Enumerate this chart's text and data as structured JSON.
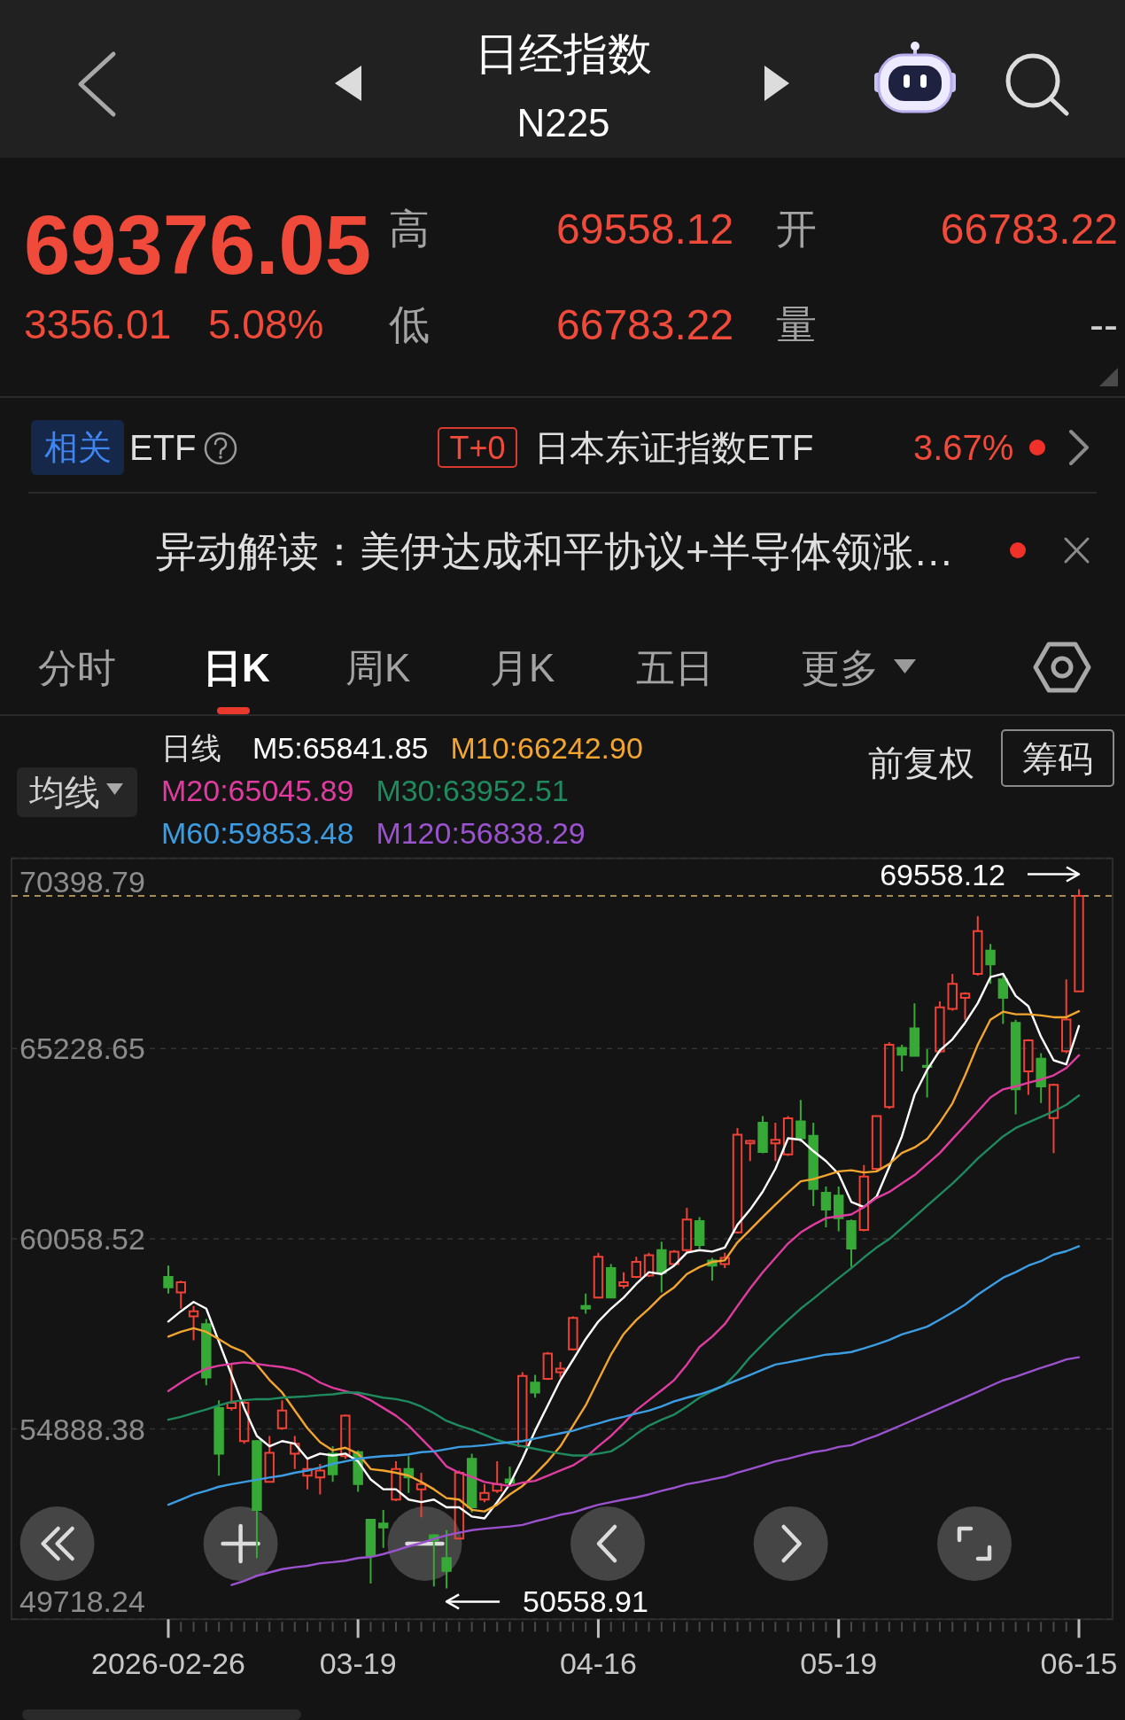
{
  "chart_data": [
    {
      "type": "other",
      "title": "日经指数",
      "subtitle": "N225",
      "annotations": [
        "69376.05",
        "3356.01",
        "5.08%",
        "高",
        "69558.12",
        "开",
        "66783.22",
        "低",
        "66783.22",
        "量",
        "--",
        "相关",
        "ETF",
        "T+0",
        "日本东证指数ETF",
        "3.67%",
        "异动解读：美伊达成和平协议+半导体领涨…",
        "分时",
        "日K",
        "周K",
        "月K",
        "五日",
        "更多"
      ]
    },
    {
      "type": "candlestick",
      "legend_title": "日线",
      "legend": "top left",
      "grid": "y",
      "annotations": [
        "均线",
        "前复权",
        "筹码",
        "69558.12",
        "50558.91"
      ],
      "categories": [
        "2026-02-26",
        null,
        null,
        null,
        null,
        null,
        null,
        null,
        null,
        null,
        null,
        null,
        null,
        null,
        null,
        "03-19",
        null,
        null,
        null,
        null,
        null,
        null,
        null,
        null,
        null,
        null,
        null,
        null,
        null,
        null,
        null,
        null,
        null,
        null,
        "04-16",
        null,
        null,
        null,
        null,
        null,
        null,
        null,
        null,
        null,
        null,
        null,
        null,
        null,
        null,
        null,
        null,
        null,
        null,
        "05-19",
        null,
        null,
        null,
        null,
        null,
        null,
        null,
        null,
        null,
        null,
        null,
        null,
        null,
        null,
        null,
        null,
        null,
        null,
        "06-15"
      ],
      "ylim": [
        49718.24,
        70398.79
      ],
      "yticks": [
        49718.24,
        54888.38,
        60058.52,
        65228.65,
        70398.79
      ],
      "ref_lines": [
        {
          "axis": "y",
          "value": 69376.05,
          "color": "#d9b56f",
          "line_style": "dashed"
        }
      ],
      "ohlc": [
        [
          59020,
          59330,
          58570,
          58740
        ],
        [
          58600,
          58920,
          58160,
          58880
        ],
        [
          57950,
          58230,
          57300,
          58090
        ],
        [
          57740,
          57880,
          56080,
          56290
        ],
        [
          55460,
          55670,
          53620,
          54220
        ],
        [
          55460,
          56640,
          55390,
          55600
        ],
        [
          54560,
          55670,
          54490,
          55600
        ],
        [
          54560,
          54590,
          51380,
          52690
        ],
        [
          53450,
          54700,
          53450,
          54240
        ],
        [
          54910,
          55670,
          54870,
          55390
        ],
        [
          54220,
          54700,
          53800,
          54490
        ],
        [
          53620,
          54080,
          53250,
          53800
        ],
        [
          53570,
          53940,
          53110,
          53760
        ],
        [
          54220,
          54420,
          53450,
          53660
        ],
        [
          54150,
          55280,
          54080,
          55250
        ],
        [
          54260,
          54310,
          53180,
          53390
        ],
        [
          52420,
          52420,
          50690,
          51450
        ],
        [
          52320,
          52690,
          51660,
          52210
        ],
        [
          52970,
          54010,
          52930,
          53800
        ],
        [
          53800,
          54150,
          53150,
          53570
        ],
        [
          53250,
          53700,
          52490,
          53390
        ],
        [
          52000,
          52030,
          50610,
          51860
        ],
        [
          51380,
          52140,
          50558.91,
          51030
        ],
        [
          51910,
          53760,
          51910,
          53700
        ],
        [
          54080,
          54220,
          52620,
          52760
        ],
        [
          52970,
          53390,
          52900,
          53150
        ],
        [
          53210,
          54010,
          53150,
          53390
        ],
        [
          53520,
          53870,
          53390,
          53430
        ],
        [
          54420,
          56430,
          54400,
          56330
        ],
        [
          56150,
          56360,
          55740,
          55880
        ],
        [
          56250,
          56980,
          56220,
          56940
        ],
        [
          56430,
          56710,
          56290,
          56530
        ],
        [
          57050,
          57950,
          57020,
          57910
        ],
        [
          58230,
          58570,
          58020,
          58160
        ],
        [
          58460,
          59680,
          58430,
          59570
        ],
        [
          59260,
          59370,
          58460,
          58460
        ],
        [
          58780,
          59150,
          58710,
          58880
        ],
        [
          59020,
          59570,
          58990,
          59430
        ],
        [
          59060,
          59680,
          59020,
          59610
        ],
        [
          59750,
          59980,
          58600,
          59130
        ],
        [
          59370,
          59750,
          59330,
          59710
        ],
        [
          59750,
          60900,
          59680,
          60580
        ],
        [
          60540,
          60650,
          59790,
          59890
        ],
        [
          59470,
          59540,
          58920,
          59330
        ],
        [
          59370,
          59680,
          59260,
          59540
        ],
        [
          60230,
          63070,
          60200,
          62890
        ],
        [
          62650,
          62750,
          62170,
          62720
        ],
        [
          63210,
          63390,
          62380,
          62420
        ],
        [
          62650,
          63210,
          62170,
          62750
        ],
        [
          62350,
          63390,
          62310,
          63330
        ],
        [
          63250,
          63830,
          62690,
          62790
        ],
        [
          62860,
          63210,
          60950,
          61410
        ],
        [
          61310,
          61480,
          60370,
          60850
        ],
        [
          61230,
          61480,
          60260,
          60620
        ],
        [
          60540,
          60580,
          59290,
          59790
        ],
        [
          60300,
          62060,
          60260,
          61750
        ],
        [
          61960,
          63410,
          61890,
          63390
        ],
        [
          63640,
          65400,
          63590,
          65330
        ],
        [
          65250,
          65330,
          64610,
          65060
        ],
        [
          65780,
          66460,
          65030,
          65030
        ],
        [
          64760,
          65210,
          63900,
          64730
        ],
        [
          65150,
          66510,
          65100,
          66350
        ],
        [
          66310,
          67260,
          66260,
          66990
        ],
        [
          66610,
          66760,
          66010,
          66720
        ],
        [
          67260,
          68830,
          67210,
          68420
        ],
        [
          67890,
          68070,
          66990,
          67520
        ],
        [
          67110,
          67210,
          65900,
          66610
        ],
        [
          65930,
          66010,
          63440,
          64120
        ],
        [
          64610,
          65480,
          63970,
          65450
        ],
        [
          64950,
          65100,
          63750,
          64200
        ],
        [
          63340,
          64270,
          62390,
          64240
        ],
        [
          65160,
          67110,
          65100,
          66020
        ],
        [
          66783.22,
          69558.12,
          66783.22,
          69376.05
        ]
      ],
      "colors": [
        "#36a936",
        "#ef4136",
        "#ef4136",
        "#36a936",
        "#36a936",
        "#ef4136",
        "#ef4136",
        "#36a936",
        "#ef4136",
        "#ef4136",
        "#ef4136",
        "#ef4136",
        "#ef4136",
        "#36a936",
        "#ef4136",
        "#36a936",
        "#36a936",
        "#36a936",
        "#ef4136",
        "#36a936",
        "#ef4136",
        "#36a936",
        "#36a936",
        "#ef4136",
        "#36a936",
        "#ef4136",
        "#ef4136",
        "#36a936",
        "#ef4136",
        "#36a936",
        "#ef4136",
        "#ef4136",
        "#ef4136",
        "#36a936",
        "#ef4136",
        "#36a936",
        "#ef4136",
        "#ef4136",
        "#ef4136",
        "#36a936",
        "#ef4136",
        "#ef4136",
        "#36a936",
        "#36a936",
        "#ef4136",
        "#ef4136",
        "#ef4136",
        "#36a936",
        "#ef4136",
        "#ef4136",
        "#36a936",
        "#36a936",
        "#36a936",
        "#36a936",
        "#36a936",
        "#ef4136",
        "#ef4136",
        "#ef4136",
        "#36a936",
        "#36a936",
        "#36a936",
        "#ef4136",
        "#ef4136",
        "#ef4136",
        "#ef4136",
        "#36a936",
        "#36a936",
        "#36a936",
        "#ef4136",
        "#36a936",
        "#ef4136",
        "#ef4136",
        "#ef4136"
      ],
      "series": [
        {
          "name": "M5:65841.85",
          "type": "line",
          "color": "#ffffff",
          "values": [
            57810,
            58090,
            58340,
            58160,
            57260,
            56360,
            55460,
            54700,
            54420,
            54560,
            54490,
            54080,
            54220,
            54170,
            54220,
            54010,
            53520,
            53250,
            53250,
            52970,
            52900,
            52970,
            52760,
            52760,
            52510,
            52460,
            52900,
            53390,
            54080,
            54840,
            55530,
            56220,
            56770,
            57330,
            57810,
            58160,
            58460,
            58830,
            59150,
            59100,
            59330,
            59680,
            59750,
            59710,
            59820,
            60440,
            60850,
            61340,
            61960,
            62790,
            62750,
            62440,
            62170,
            61820,
            61060,
            60920,
            61200,
            62010,
            62840,
            63970,
            64650,
            65180,
            65480,
            65930,
            66460,
            67170,
            67260,
            66660,
            66380,
            65550,
            64910,
            64800,
            65841.85
          ]
        },
        {
          "name": "M10:66242.90",
          "type": "line",
          "color": "#f2a52f",
          "values": [
            57400,
            57530,
            57630,
            57530,
            57330,
            57120,
            56980,
            56640,
            56220,
            55880,
            55390,
            54910,
            54530,
            54310,
            54380,
            54220,
            53800,
            53760,
            53700,
            53620,
            53450,
            53250,
            53010,
            52970,
            52690,
            52650,
            52830,
            53110,
            53340,
            53660,
            54010,
            54420,
            54980,
            55530,
            56220,
            56910,
            57470,
            57850,
            58160,
            58500,
            58740,
            59100,
            59290,
            59430,
            59470,
            59960,
            60300,
            60650,
            60990,
            61310,
            61620,
            61680,
            61780,
            61890,
            61920,
            61860,
            61890,
            62090,
            62390,
            62540,
            62770,
            63220,
            63740,
            64500,
            65330,
            66010,
            66230,
            66160,
            66160,
            66130,
            66080,
            66080,
            66242.9
          ]
        },
        {
          "name": "M20:65045.89",
          "type": "line",
          "color": "#e03ca0",
          "values": [
            55920,
            56150,
            56360,
            56530,
            56610,
            56660,
            56700,
            56660,
            56610,
            56570,
            56500,
            56360,
            56150,
            56010,
            55920,
            55830,
            55670,
            55460,
            55250,
            54980,
            54630,
            54280,
            53870,
            53700,
            53590,
            53450,
            53390,
            53340,
            53430,
            53480,
            53620,
            53760,
            53900,
            54120,
            54420,
            54700,
            55040,
            55400,
            55670,
            55940,
            56220,
            56640,
            57120,
            57400,
            57740,
            58230,
            58710,
            59150,
            59540,
            59930,
            60230,
            60440,
            60620,
            60670,
            60720,
            60920,
            61170,
            61330,
            61560,
            61790,
            62090,
            62390,
            62770,
            63140,
            63520,
            63900,
            64120,
            64200,
            64300,
            64390,
            64500,
            64700,
            65045.89
          ]
        },
        {
          "name": "M30:63952.51",
          "type": "line",
          "color": "#1f8a5e",
          "values": [
            55140,
            55220,
            55320,
            55420,
            55530,
            55630,
            55670,
            55700,
            55700,
            55740,
            55760,
            55780,
            55810,
            55830,
            55880,
            55880,
            55810,
            55740,
            55700,
            55630,
            55500,
            55320,
            55110,
            54980,
            54870,
            54730,
            54590,
            54490,
            54420,
            54350,
            54280,
            54220,
            54170,
            54170,
            54220,
            54280,
            54490,
            54750,
            54980,
            55140,
            55280,
            55500,
            55740,
            55920,
            56080,
            56430,
            56840,
            57190,
            57530,
            57850,
            58160,
            58430,
            58710,
            58990,
            59260,
            59550,
            59820,
            60050,
            60350,
            60650,
            60960,
            61260,
            61560,
            61890,
            62240,
            62540,
            62840,
            63070,
            63220,
            63370,
            63520,
            63700,
            63952.51
          ]
        },
        {
          "name": "M60:59853.48",
          "type": "line",
          "color": "#3d9de3",
          "values": [
            52830,
            52970,
            53110,
            53210,
            53320,
            53390,
            53450,
            53510,
            53570,
            53620,
            53700,
            53760,
            53840,
            53940,
            54010,
            54080,
            54120,
            54150,
            54170,
            54200,
            54260,
            54280,
            54340,
            54400,
            54420,
            54450,
            54490,
            54530,
            54560,
            54630,
            54700,
            54770,
            54840,
            54950,
            55040,
            55140,
            55220,
            55310,
            55390,
            55500,
            55640,
            55740,
            55830,
            55940,
            56080,
            56220,
            56360,
            56500,
            56640,
            56700,
            56770,
            56840,
            56910,
            56940,
            56980,
            57080,
            57190,
            57310,
            57460,
            57560,
            57670,
            57860,
            58060,
            58270,
            58540,
            58770,
            59000,
            59150,
            59330,
            59450,
            59630,
            59720,
            59853.48
          ]
        },
        {
          "name": "M120:56838.29",
          "type": "line",
          "color": "#9b52cf",
          "values": [
            null,
            null,
            null,
            null,
            null,
            50650,
            50760,
            50900,
            50990,
            51080,
            51130,
            51170,
            51240,
            51270,
            51310,
            51380,
            51410,
            51490,
            51590,
            51700,
            51790,
            51900,
            52000,
            52070,
            52140,
            52180,
            52210,
            52240,
            52280,
            52380,
            52460,
            52560,
            52620,
            52730,
            52830,
            52900,
            52970,
            53030,
            53110,
            53210,
            53290,
            53390,
            53450,
            53520,
            53590,
            53700,
            53800,
            53900,
            54010,
            54080,
            54170,
            54260,
            54310,
            54400,
            54450,
            54590,
            54710,
            54850,
            55000,
            55150,
            55300,
            55450,
            55600,
            55750,
            55900,
            56060,
            56210,
            56310,
            56430,
            56550,
            56660,
            56780,
            56838.29
          ]
        }
      ]
    }
  ]
}
